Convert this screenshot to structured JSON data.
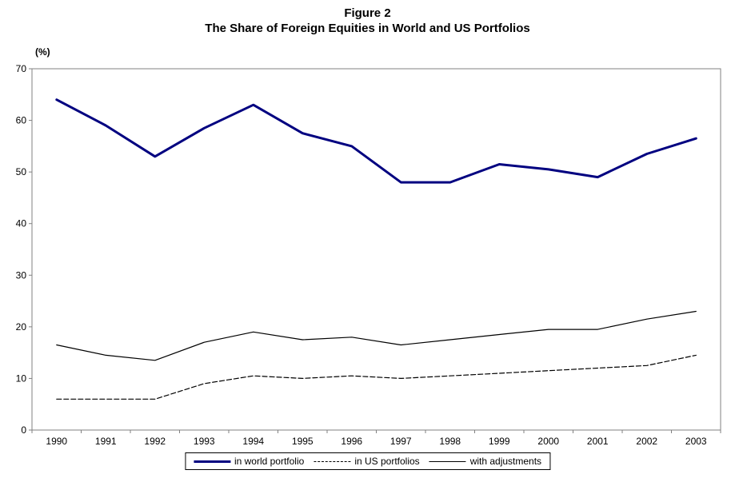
{
  "figure": {
    "title_line1": "Figure 2",
    "title_line2": "The Share of Foreign Equities in World and US Portfolios",
    "y_unit_label": "(%)"
  },
  "chart_data": {
    "type": "line",
    "title": "Figure 2 - The Share of Foreign Equities in World and US Portfolios",
    "xlabel": "",
    "ylabel": "(%)",
    "ylim": [
      0,
      70
    ],
    "ytick_step": 10,
    "grid": false,
    "legend_position": "bottom-center",
    "plot_border_color": "#808080",
    "categories": [
      "1990",
      "1991",
      "1992",
      "1993",
      "1994",
      "1995",
      "1996",
      "1997",
      "1998",
      "1999",
      "2000",
      "2001",
      "2002",
      "2003"
    ],
    "series": [
      {
        "name": "in world portfolio",
        "style": "thick-solid",
        "color": "#000080",
        "values": [
          64,
          59,
          53,
          58.5,
          63,
          57.5,
          55,
          48,
          48,
          51.5,
          50.5,
          49,
          53.5,
          56.5
        ]
      },
      {
        "name": "in US portfolios",
        "style": "dashed",
        "color": "#000000",
        "values": [
          6,
          6,
          6,
          9,
          10.5,
          10,
          10.5,
          10,
          10.5,
          11,
          11.5,
          12,
          12.5,
          14.5
        ]
      },
      {
        "name": "with adjustments",
        "style": "thin-solid",
        "color": "#000000",
        "values": [
          16.5,
          14.5,
          13.5,
          17,
          19,
          17.5,
          18,
          16.5,
          17.5,
          18.5,
          19.5,
          19.5,
          21.5,
          23
        ]
      }
    ]
  }
}
